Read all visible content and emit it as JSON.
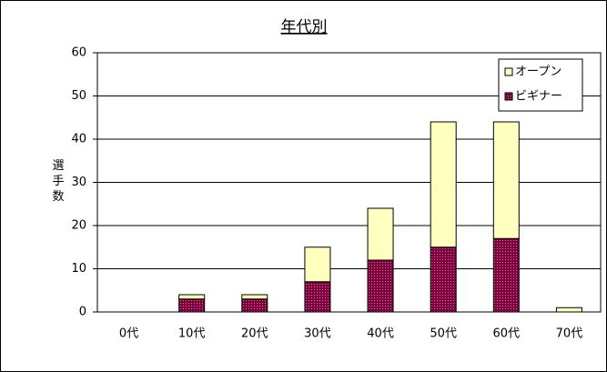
{
  "chart_data": {
    "type": "stacked-bar",
    "title": "年代別",
    "y_label": "選手数",
    "categories": [
      "0代",
      "10代",
      "20代",
      "30代",
      "40代",
      "50代",
      "60代",
      "70代"
    ],
    "series": [
      {
        "name": "ビギナー",
        "color": "#800040",
        "values": [
          0,
          3,
          3,
          7,
          12,
          15,
          17,
          0
        ]
      },
      {
        "name": "オープン",
        "color": "#ffffc0",
        "values": [
          0,
          1,
          1,
          8,
          12,
          29,
          27,
          1
        ]
      }
    ],
    "ylim": [
      0,
      60
    ],
    "yticks": [
      0,
      10,
      20,
      30,
      40,
      50,
      60
    ],
    "grid": true,
    "legend": "top-right"
  }
}
